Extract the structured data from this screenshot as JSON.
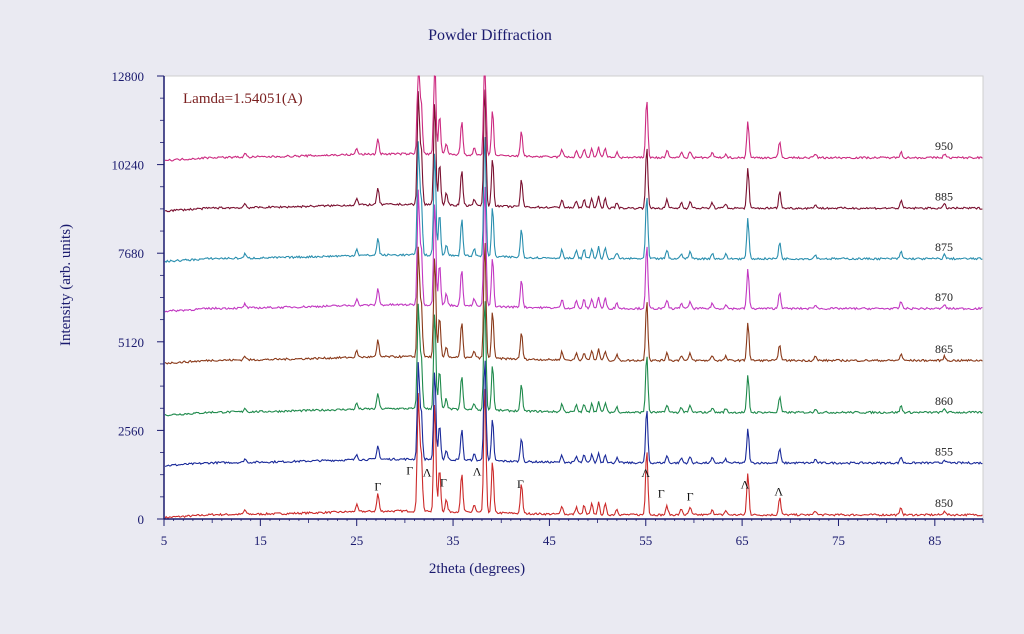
{
  "chart_data": {
    "type": "line",
    "title": "Powder Diffraction",
    "xlabel": "2theta (degrees)",
    "ylabel": "Intensity (arb. units)",
    "xlim": [
      5,
      90
    ],
    "ylim": [
      0,
      12800
    ],
    "xticks": [
      5,
      15,
      25,
      35,
      45,
      55,
      65,
      75,
      85
    ],
    "yticks": [
      0,
      2560,
      5120,
      7680,
      10240,
      12800
    ],
    "annotation": "Lamda=1.54051(A)",
    "annotation_color": "#7a1f1f",
    "axis_color": "#1a1a6e",
    "peaks": [
      {
        "x": 13.4,
        "h": 0.3
      },
      {
        "x": 25.0,
        "h": 0.45
      },
      {
        "x": 27.2,
        "h": 1.2
      },
      {
        "x": 31.4,
        "h": 8.0
      },
      {
        "x": 31.7,
        "h": 4.0
      },
      {
        "x": 33.1,
        "h": 7.5
      },
      {
        "x": 33.6,
        "h": 3.0
      },
      {
        "x": 34.3,
        "h": 0.8
      },
      {
        "x": 35.9,
        "h": 2.6
      },
      {
        "x": 37.2,
        "h": 0.5
      },
      {
        "x": 38.3,
        "h": 8.8
      },
      {
        "x": 39.1,
        "h": 3.5
      },
      {
        "x": 42.1,
        "h": 2.0
      },
      {
        "x": 46.3,
        "h": 0.6
      },
      {
        "x": 47.8,
        "h": 0.5
      },
      {
        "x": 48.6,
        "h": 0.6
      },
      {
        "x": 49.4,
        "h": 0.7
      },
      {
        "x": 50.1,
        "h": 0.8
      },
      {
        "x": 50.8,
        "h": 0.7
      },
      {
        "x": 52.0,
        "h": 0.4
      },
      {
        "x": 55.1,
        "h": 4.5
      },
      {
        "x": 57.2,
        "h": 0.6
      },
      {
        "x": 58.7,
        "h": 0.4
      },
      {
        "x": 59.6,
        "h": 0.5
      },
      {
        "x": 61.9,
        "h": 0.4
      },
      {
        "x": 63.3,
        "h": 0.3
      },
      {
        "x": 65.6,
        "h": 2.8
      },
      {
        "x": 68.9,
        "h": 1.2
      },
      {
        "x": 72.6,
        "h": 0.3
      },
      {
        "x": 81.5,
        "h": 0.5
      },
      {
        "x": 86.0,
        "h": 0.3
      }
    ],
    "peak_unit": 320,
    "series": [
      {
        "label": "850",
        "color": "#cc2a2a",
        "base": 120,
        "gain": 1.35
      },
      {
        "label": "855",
        "color": "#1a2a9a",
        "base": 1620,
        "gain": 1.1
      },
      {
        "label": "860",
        "color": "#1f8a4c",
        "base": 3080,
        "gain": 1.2
      },
      {
        "label": "865",
        "color": "#8a3a1a",
        "base": 4580,
        "gain": 1.25
      },
      {
        "label": "870",
        "color": "#c238c2",
        "base": 6080,
        "gain": 1.3
      },
      {
        "label": "875",
        "color": "#2a8faf",
        "base": 7520,
        "gain": 1.3
      },
      {
        "label": "885",
        "color": "#7a1030",
        "base": 8980,
        "gain": 1.28
      },
      {
        "label": "950",
        "color": "#cc2a80",
        "base": 10440,
        "gain": 1.2
      }
    ],
    "phase_markers": [
      {
        "x": 27.2,
        "symbol": "Γ",
        "y": 820
      },
      {
        "x": 30.5,
        "symbol": "Γ",
        "y": 1280
      },
      {
        "x": 32.3,
        "symbol": "Λ",
        "y": 1230
      },
      {
        "x": 34.0,
        "symbol": "Γ",
        "y": 940
      },
      {
        "x": 37.5,
        "symbol": "Λ",
        "y": 1260
      },
      {
        "x": 42.0,
        "symbol": "Γ",
        "y": 900
      },
      {
        "x": 55.0,
        "symbol": "Λ",
        "y": 1220
      },
      {
        "x": 56.6,
        "symbol": "Γ",
        "y": 620
      },
      {
        "x": 59.6,
        "symbol": "Γ",
        "y": 540
      },
      {
        "x": 65.3,
        "symbol": "Λ",
        "y": 880
      },
      {
        "x": 68.8,
        "symbol": "Λ",
        "y": 680
      }
    ]
  }
}
